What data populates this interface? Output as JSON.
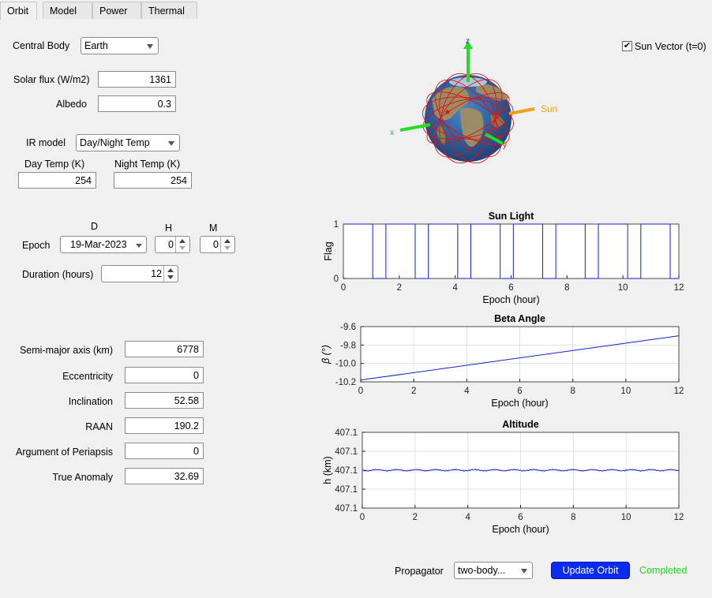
{
  "tabs": [
    {
      "label": "Orbit",
      "active": true
    },
    {
      "label": "Model",
      "active": false
    },
    {
      "label": "Power",
      "active": false
    },
    {
      "label": "Thermal",
      "active": false
    }
  ],
  "environment": {
    "central_body_label": "Central Body",
    "central_body_value": "Earth",
    "solar_flux_label": "Solar flux (W/m2)",
    "solar_flux_value": "1361",
    "albedo_label": "Albedo",
    "albedo_value": "0.3",
    "ir_model_label": "IR model",
    "ir_model_value": "Day/Night Temp",
    "day_temp_label": "Day Temp (K)",
    "day_temp_value": "254",
    "night_temp_label": "Night Temp (K)",
    "night_temp_value": "254"
  },
  "time": {
    "d_label": "D",
    "h_label": "H",
    "m_label": "M",
    "epoch_label": "Epoch",
    "epoch_date": "19-Mar-2023",
    "epoch_h": "0",
    "epoch_m": "0",
    "duration_label": "Duration (hours)",
    "duration_value": "12"
  },
  "elements": {
    "sma_label": "Semi-major axis (km)",
    "sma_value": "6778",
    "ecc_label": "Eccentricity",
    "ecc_value": "0",
    "inc_label": "Inclination",
    "inc_value": "52.58",
    "raan_label": "RAAN",
    "raan_value": "190.2",
    "argp_label": "Argument of Periapsis",
    "argp_value": "0",
    "ta_label": "True Anomaly",
    "ta_value": "32.69"
  },
  "globe": {
    "z_label": "z",
    "x_label": "x",
    "y_label": "y",
    "sun_label": "Sun",
    "sun_color": "#f0a020",
    "axis_color": "#22dd22",
    "orbit_color": "#e01010"
  },
  "sun_vector": {
    "label": "Sun Vector (t=0)",
    "checked": true,
    "check_glyph": "✔"
  },
  "footer": {
    "propagator_label": "Propagator",
    "propagator_value": "two-body...",
    "update_button": "Update Orbit",
    "status": "Completed",
    "status_color": "#16e016",
    "button_color": "#0a2bf0"
  },
  "chart_data": [
    {
      "type": "line",
      "title": "Sun Light",
      "xlabel": "Epoch (hour)",
      "ylabel": "Flag",
      "xlim": [
        0,
        12
      ],
      "ylim": [
        0,
        1
      ],
      "xticks": [
        0,
        2,
        4,
        6,
        8,
        10,
        12
      ],
      "yticks": [
        0,
        1
      ],
      "ytick_labels": [
        "0",
        "1"
      ],
      "grid": false,
      "series": [
        {
          "color": "#1020d0",
          "x": [
            0,
            1.05,
            1.05,
            1.52,
            1.52,
            2.57,
            2.57,
            3.04,
            3.04,
            4.09,
            4.09,
            4.56,
            4.56,
            5.61,
            5.61,
            6.08,
            6.08,
            7.13,
            7.13,
            7.6,
            7.6,
            8.65,
            8.65,
            9.12,
            9.12,
            10.17,
            10.17,
            10.64,
            10.64,
            11.69,
            11.69,
            12
          ],
          "y": [
            1,
            1,
            0,
            0,
            1,
            1,
            0,
            0,
            1,
            1,
            0,
            0,
            1,
            1,
            0,
            0,
            1,
            1,
            0,
            0,
            1,
            1,
            0,
            0,
            1,
            1,
            0,
            0,
            1,
            1,
            0,
            0
          ]
        }
      ]
    },
    {
      "type": "line",
      "title": "Beta Angle",
      "xlabel": "Epoch (hour)",
      "ylabel": "β (°)",
      "xlim": [
        0,
        12
      ],
      "ylim": [
        -10.2,
        -9.6
      ],
      "xticks": [
        0,
        2,
        4,
        6,
        8,
        10,
        12
      ],
      "yticks": [
        -9.6,
        -9.8,
        -10.0,
        -10.2
      ],
      "ytick_labels": [
        "-9.6",
        "-9.8",
        "-10.0",
        "-10.2"
      ],
      "grid": true,
      "series": [
        {
          "color": "#1020d0",
          "x": [
            0,
            12
          ],
          "y": [
            -10.18,
            -9.7
          ]
        }
      ]
    },
    {
      "type": "line",
      "title": "Altitude",
      "xlabel": "Epoch (hour)",
      "ylabel": "h (km)",
      "xlim": [
        0,
        12
      ],
      "ylim": [
        407.0995,
        407.1005
      ],
      "xticks": [
        0,
        2,
        4,
        6,
        8,
        10,
        12
      ],
      "yticks": [
        407.1005,
        407.10025,
        407.1,
        407.09975,
        407.0995
      ],
      "ytick_labels": [
        "407.1",
        "407.1",
        "407.1",
        "407.1",
        "407.1"
      ],
      "grid": true,
      "series": [
        {
          "color": "#1020d0",
          "noise": true,
          "x": [
            0,
            12
          ],
          "y": [
            407.1,
            407.1
          ]
        }
      ]
    }
  ]
}
